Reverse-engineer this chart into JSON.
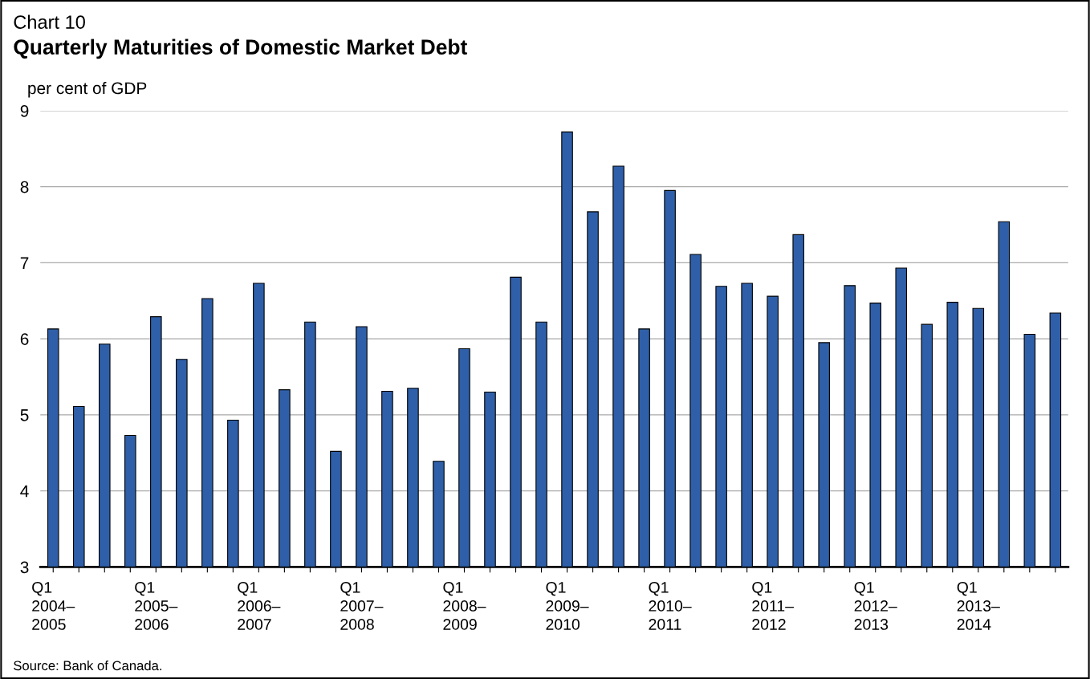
{
  "chart_data": {
    "type": "bar",
    "subtitle": "Chart 10",
    "title": "Quarterly Maturities of Domestic Market Debt",
    "ylabel": "per cent of GDP",
    "categories": [
      "Q1\n2004–\n2005",
      null,
      null,
      null,
      "Q1\n2005–\n2006",
      null,
      null,
      null,
      "Q1\n2006–\n2007",
      null,
      null,
      null,
      "Q1\n2007–\n2008",
      null,
      null,
      null,
      "Q1\n2008–\n2009",
      null,
      null,
      null,
      "Q1\n2009–\n2010",
      null,
      null,
      null,
      "Q1\n2010–\n2011",
      null,
      null,
      null,
      "Q1\n2011–\n2012",
      null,
      null,
      null,
      "Q1\n2012–\n2013",
      null,
      null,
      null,
      "Q1\n2013–\n2014",
      null,
      null,
      null
    ],
    "series": [
      {
        "color": "#2f5fa8",
        "values": [
          6.13,
          5.11,
          5.93,
          4.73,
          6.29,
          5.73,
          6.53,
          4.93,
          6.73,
          5.33,
          6.22,
          4.52,
          6.16,
          5.31,
          5.35,
          4.39,
          5.87,
          5.3,
          6.81,
          6.22,
          8.72,
          7.67,
          8.27,
          6.13,
          7.95,
          7.11,
          6.69,
          6.73,
          6.56,
          7.37,
          5.95,
          6.7,
          6.47,
          6.93,
          6.19,
          6.48,
          6.4,
          7.54,
          6.06,
          6.34
        ]
      }
    ],
    "ylim": [
      3,
      9
    ],
    "yticks": [
      3,
      4,
      5,
      6,
      7,
      8,
      9
    ],
    "grid": "y",
    "legend": false,
    "annotations": [
      "Source: Bank of Canada."
    ]
  }
}
